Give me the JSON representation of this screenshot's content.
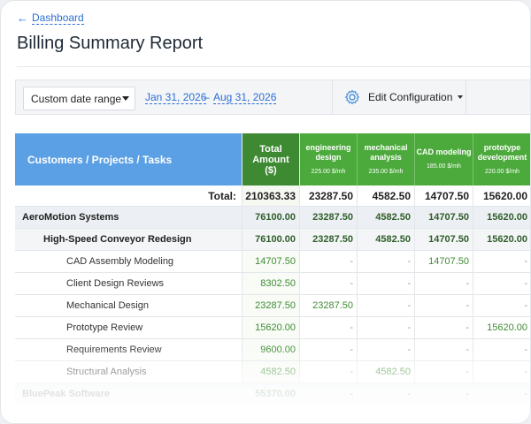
{
  "nav": {
    "back_label": "Dashboard"
  },
  "page": {
    "title": "Billing Summary Report"
  },
  "toolbar": {
    "date_range_select": "Custom date range",
    "date_from": "Jan 31, 2026",
    "date_separator": "–",
    "date_to": "Aug 31, 2026",
    "config_label": "Edit Configuration"
  },
  "table": {
    "first_column_header": "Customers / Projects / Tasks",
    "total_header": "Total Amount ($)",
    "columns": [
      {
        "name": "engineering design",
        "rate": "225.00 $/mh"
      },
      {
        "name": "mechanical analysis",
        "rate": "235.00 $/mh"
      },
      {
        "name": "CAD modeling",
        "rate": "185.00 $/mh"
      },
      {
        "name": "prototype development",
        "rate": "220.00 $/mh"
      }
    ],
    "total_row": {
      "label": "Total:",
      "values": [
        "210363.33",
        "23287.50",
        "4582.50",
        "14707.50",
        "15620.00"
      ]
    },
    "rows": [
      {
        "kind": "company",
        "label": "AeroMotion Systems",
        "values": [
          "76100.00",
          "23287.50",
          "4582.50",
          "14707.50",
          "15620.00"
        ]
      },
      {
        "kind": "project",
        "label": "High-Speed Conveyor Redesign",
        "values": [
          "76100.00",
          "23287.50",
          "4582.50",
          "14707.50",
          "15620.00"
        ]
      },
      {
        "kind": "task",
        "label": "CAD Assembly Modeling",
        "values": [
          "14707.50",
          "-",
          "-",
          "14707.50",
          "-"
        ]
      },
      {
        "kind": "task",
        "label": "Client Design Reviews",
        "values": [
          "8302.50",
          "-",
          "-",
          "-",
          "-"
        ]
      },
      {
        "kind": "task",
        "label": "Mechanical Design",
        "values": [
          "23287.50",
          "23287.50",
          "-",
          "-",
          "-"
        ]
      },
      {
        "kind": "task",
        "label": "Prototype Review",
        "values": [
          "15620.00",
          "-",
          "-",
          "-",
          "15620.00"
        ]
      },
      {
        "kind": "task",
        "label": "Requirements Review",
        "values": [
          "9600.00",
          "-",
          "-",
          "-",
          "-"
        ]
      },
      {
        "kind": "task",
        "label": "Structural Analysis",
        "values": [
          "4582.50",
          "-",
          "4582.50",
          "-",
          "-"
        ]
      },
      {
        "kind": "company",
        "label": "BluePeak Software",
        "values": [
          "55370.00",
          "-",
          "-",
          "-",
          "-"
        ]
      }
    ]
  }
}
